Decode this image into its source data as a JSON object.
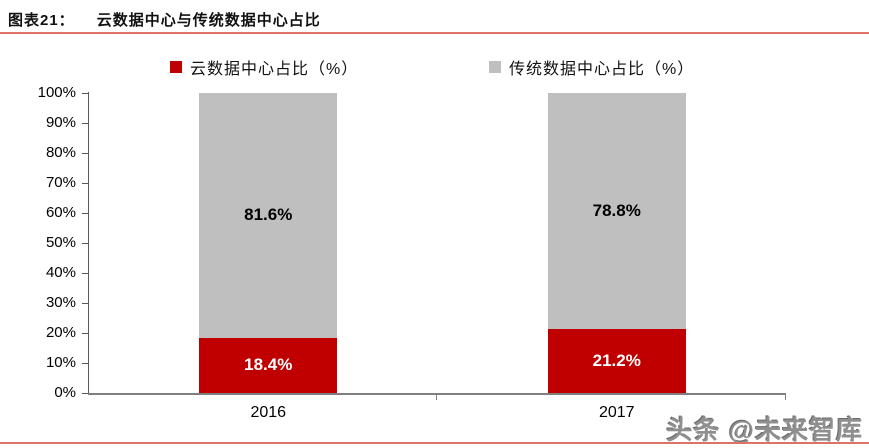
{
  "header": {
    "label": "图表21：",
    "title": "云数据中心与传统数据中心占比"
  },
  "legend": [
    {
      "label": "云数据中心占比（%）",
      "color": "#c00000"
    },
    {
      "label": "传统数据中心占比（%）",
      "color": "#bfbfbf"
    }
  ],
  "watermark": "头条 @未来智库",
  "colors": {
    "cloud_red": "#c00000",
    "traditional_gray": "#bfbfbf",
    "divider_red": "#dd7265",
    "xaxis_gray": "#7f7f7f",
    "yaxis_gray": "#595959"
  },
  "chart_data": {
    "type": "bar",
    "stacked": true,
    "orientation": "vertical",
    "title": "云数据中心与传统数据中心占比",
    "categories": [
      "2016",
      "2017"
    ],
    "series": [
      {
        "name": "云数据中心占比（%）",
        "color": "#c00000",
        "label_color": "#ffffff",
        "values": [
          18.4,
          21.2
        ]
      },
      {
        "name": "传统数据中心占比（%）",
        "color": "#bfbfbf",
        "label_color": "#000000",
        "values": [
          81.6,
          78.8
        ]
      }
    ],
    "data_label_format": "{value}%",
    "xlabel": "",
    "ylabel": "",
    "ylim": [
      0,
      100
    ],
    "ytick_step": 10,
    "ytick_labels": [
      "0%",
      "10%",
      "20%",
      "30%",
      "40%",
      "50%",
      "60%",
      "70%",
      "80%",
      "90%",
      "100%"
    ],
    "legend_position": "top",
    "grid": false
  }
}
